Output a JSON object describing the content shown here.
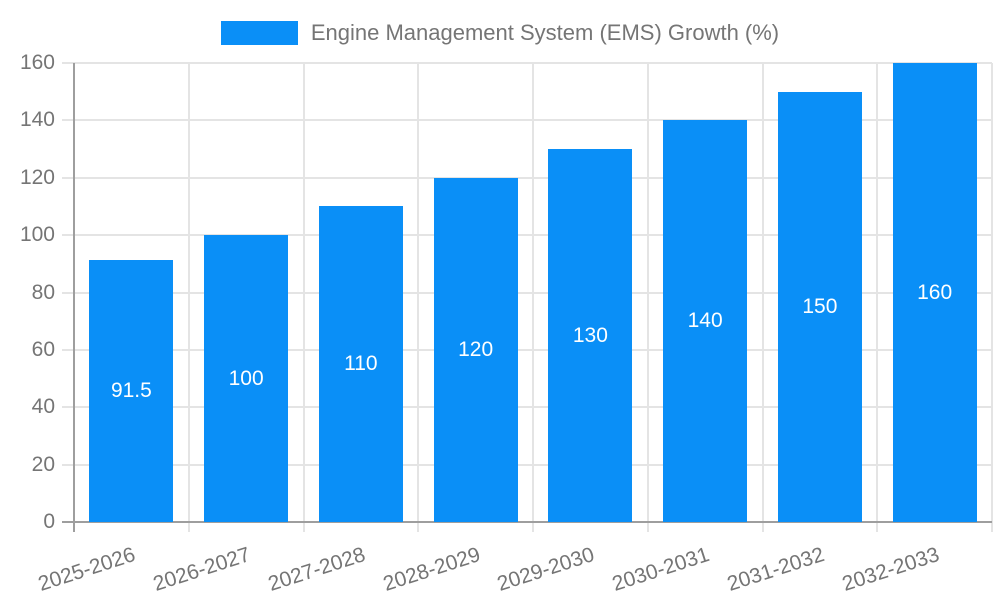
{
  "colors": {
    "bar": "#0A8FF7",
    "grid": "#E4E4E4",
    "axis": "#9E9E9E",
    "text": "#757575",
    "bar_label": "#FFFFFF",
    "background": "#FFFFFF"
  },
  "chart_data": {
    "type": "bar",
    "title": "",
    "legend": [
      "Engine Management System (EMS) Growth (%)"
    ],
    "legend_position": "top",
    "categories": [
      "2025-2026",
      "2026-2027",
      "2027-2028",
      "2028-2029",
      "2029-2030",
      "2030-2031",
      "2031-2032",
      "2032-2033"
    ],
    "values": [
      91.5,
      100,
      110,
      120,
      130,
      140,
      150,
      160
    ],
    "xlabel": "",
    "ylabel": "",
    "ylim": [
      0,
      160
    ],
    "yticks": [
      0,
      20,
      40,
      60,
      80,
      100,
      120,
      140,
      160
    ],
    "grid": true,
    "bar_label_position": "inside-center",
    "x_label_rotation_deg": -18
  }
}
